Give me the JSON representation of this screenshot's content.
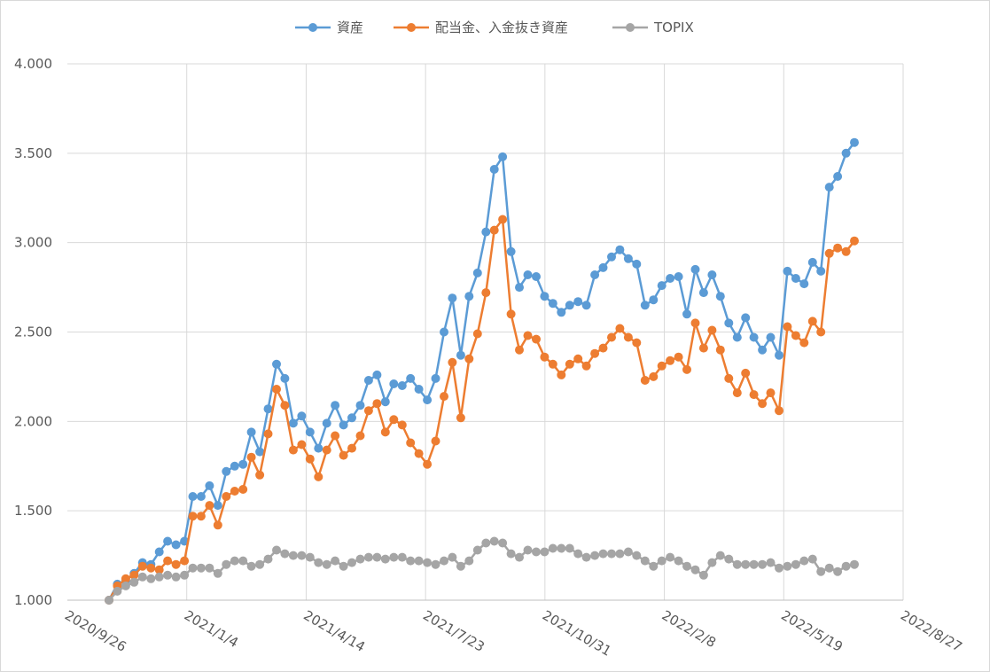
{
  "chart_data": {
    "type": "line",
    "title": "",
    "xlabel": "",
    "ylabel": "",
    "ylim": [
      1.0,
      4.0
    ],
    "x_ticks": [
      "2020/9/26",
      "2021/1/4",
      "2021/4/14",
      "2021/7/23",
      "2021/10/31",
      "2022/2/8",
      "2022/5/19",
      "2022/8/27"
    ],
    "y_ticks": [
      "1.000",
      "1.500",
      "2.000",
      "2.500",
      "3.000",
      "3.500",
      "4.000"
    ],
    "y_tick_values": [
      1.0,
      1.5,
      2.0,
      2.5,
      3.0,
      3.5,
      4.0
    ],
    "grid": true,
    "legend_position": "top-center",
    "series": [
      {
        "name": "資産",
        "color": "#5B9BD5",
        "values": [
          1.0,
          1.09,
          1.11,
          1.15,
          1.21,
          1.2,
          1.27,
          1.33,
          1.31,
          1.33,
          1.58,
          1.58,
          1.64,
          1.53,
          1.72,
          1.75,
          1.76,
          1.94,
          1.83,
          2.07,
          2.32,
          2.24,
          1.99,
          2.03,
          1.94,
          1.85,
          1.99,
          2.09,
          1.98,
          2.02,
          2.09,
          2.23,
          2.26,
          2.11,
          2.21,
          2.2,
          2.24,
          2.18,
          2.12,
          2.24,
          2.5,
          2.69,
          2.37,
          2.7,
          2.83,
          3.06,
          3.41,
          3.48,
          2.95,
          2.75,
          2.82,
          2.81,
          2.7,
          2.66,
          2.61,
          2.65,
          2.67,
          2.65,
          2.82,
          2.86,
          2.92,
          2.96,
          2.91,
          2.88,
          2.65,
          2.68,
          2.76,
          2.8,
          2.81,
          2.6,
          2.85,
          2.72,
          2.82,
          2.7,
          2.55,
          2.47,
          2.58,
          2.47,
          2.4,
          2.47,
          2.37,
          2.84,
          2.8,
          2.77,
          2.89,
          2.84,
          3.31,
          3.37,
          3.5,
          3.56
        ]
      },
      {
        "name": "配当金、入金抜き資産",
        "color": "#ED7D31",
        "values": [
          1.0,
          1.08,
          1.12,
          1.14,
          1.19,
          1.18,
          1.17,
          1.22,
          1.2,
          1.22,
          1.47,
          1.47,
          1.53,
          1.42,
          1.58,
          1.61,
          1.62,
          1.8,
          1.7,
          1.93,
          2.18,
          2.09,
          1.84,
          1.87,
          1.79,
          1.69,
          1.84,
          1.92,
          1.81,
          1.85,
          1.92,
          2.06,
          2.1,
          1.94,
          2.01,
          1.98,
          1.88,
          1.82,
          1.76,
          1.89,
          2.14,
          2.33,
          2.02,
          2.35,
          2.49,
          2.72,
          3.07,
          3.13,
          2.6,
          2.4,
          2.48,
          2.46,
          2.36,
          2.32,
          2.26,
          2.32,
          2.35,
          2.31,
          2.38,
          2.41,
          2.47,
          2.52,
          2.47,
          2.44,
          2.23,
          2.25,
          2.31,
          2.34,
          2.36,
          2.29,
          2.55,
          2.41,
          2.51,
          2.4,
          2.24,
          2.16,
          2.27,
          2.15,
          2.1,
          2.16,
          2.06,
          2.53,
          2.48,
          2.44,
          2.56,
          2.5,
          2.94,
          2.97,
          2.95,
          3.01
        ]
      },
      {
        "name": "TOPIX",
        "color": "#A5A5A5",
        "values": [
          1.0,
          1.05,
          1.08,
          1.1,
          1.13,
          1.12,
          1.13,
          1.14,
          1.13,
          1.14,
          1.18,
          1.18,
          1.18,
          1.15,
          1.2,
          1.22,
          1.22,
          1.19,
          1.2,
          1.23,
          1.28,
          1.26,
          1.25,
          1.25,
          1.24,
          1.21,
          1.2,
          1.22,
          1.19,
          1.21,
          1.23,
          1.24,
          1.24,
          1.23,
          1.24,
          1.24,
          1.22,
          1.22,
          1.21,
          1.2,
          1.22,
          1.24,
          1.19,
          1.22,
          1.28,
          1.32,
          1.33,
          1.32,
          1.26,
          1.24,
          1.28,
          1.27,
          1.27,
          1.29,
          1.29,
          1.29,
          1.26,
          1.24,
          1.25,
          1.26,
          1.26,
          1.26,
          1.27,
          1.25,
          1.22,
          1.19,
          1.22,
          1.24,
          1.22,
          1.19,
          1.17,
          1.14,
          1.21,
          1.25,
          1.23,
          1.2,
          1.2,
          1.2,
          1.2,
          1.21,
          1.18,
          1.19,
          1.2,
          1.22,
          1.23,
          1.16,
          1.18,
          1.16,
          1.19,
          1.2
        ]
      }
    ]
  }
}
